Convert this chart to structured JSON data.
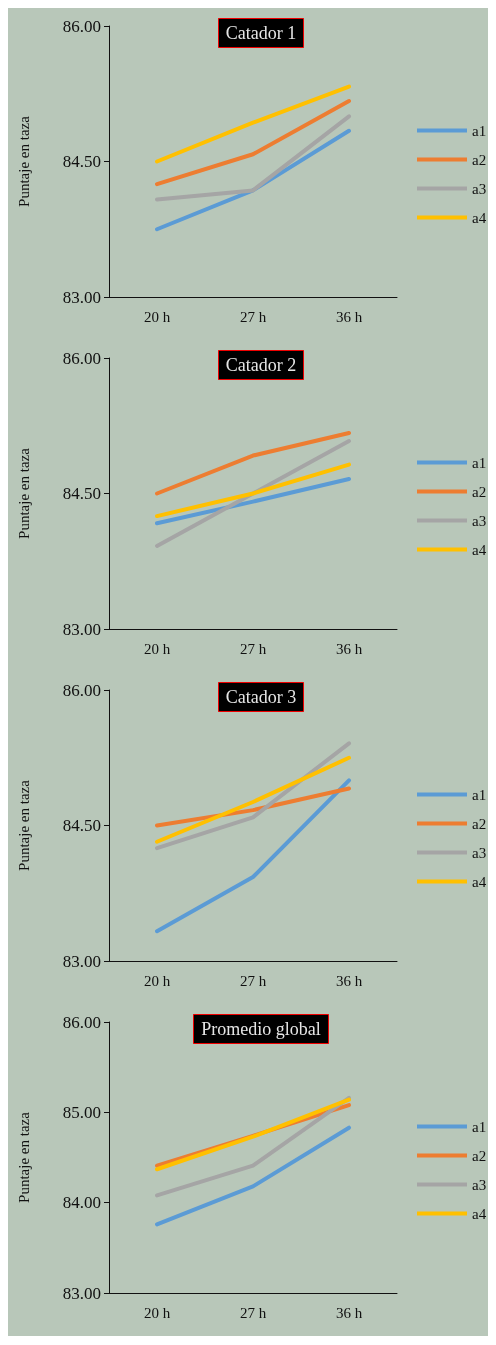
{
  "chart_data": [
    {
      "type": "line",
      "title": "Catador 1",
      "ylabel": "Puntaje en taza",
      "categories": [
        "20 h",
        "27 h",
        "36 h"
      ],
      "ylim": [
        83,
        86
      ],
      "yticks": [
        {
          "value": 83,
          "label": "83.00"
        },
        {
          "value": 84.5,
          "label": "84.50"
        },
        {
          "value": 86,
          "label": "86.00"
        }
      ],
      "grid": false,
      "legend": "right",
      "marker": "none",
      "series": [
        {
          "name": "a1",
          "color": "#5b9bd5",
          "values": [
            83.75,
            84.18,
            84.84
          ]
        },
        {
          "name": "a2",
          "color": "#ed7d31",
          "values": [
            84.25,
            84.58,
            85.17
          ]
        },
        {
          "name": "a3",
          "color": "#a5a5a5",
          "values": [
            84.08,
            84.18,
            85.0
          ]
        },
        {
          "name": "a4",
          "color": "#ffc000",
          "values": [
            84.5,
            84.93,
            85.33
          ]
        }
      ]
    },
    {
      "type": "line",
      "title": "Catador 2",
      "ylabel": "Puntaje en taza",
      "categories": [
        "20 h",
        "27 h",
        "36 h"
      ],
      "ylim": [
        83,
        86
      ],
      "yticks": [
        {
          "value": 83,
          "label": "83.00"
        },
        {
          "value": 84.5,
          "label": "84.50"
        },
        {
          "value": 86,
          "label": "86.00"
        }
      ],
      "grid": false,
      "legend": "right",
      "marker": "none",
      "series": [
        {
          "name": "a1",
          "color": "#5b9bd5",
          "values": [
            84.17,
            84.41,
            84.66
          ]
        },
        {
          "name": "a2",
          "color": "#ed7d31",
          "values": [
            84.5,
            84.92,
            85.17
          ]
        },
        {
          "name": "a3",
          "color": "#a5a5a5",
          "values": [
            83.92,
            84.5,
            85.08
          ]
        },
        {
          "name": "a4",
          "color": "#ffc000",
          "values": [
            84.25,
            84.5,
            84.82
          ]
        }
      ]
    },
    {
      "type": "line",
      "title": "Catador 3",
      "ylabel": "Puntaje en taza",
      "categories": [
        "20 h",
        "27 h",
        "36 h"
      ],
      "ylim": [
        83,
        86
      ],
      "yticks": [
        {
          "value": 83,
          "label": "83.00"
        },
        {
          "value": 84.5,
          "label": "84.50"
        },
        {
          "value": 86,
          "label": "86.00"
        }
      ],
      "grid": false,
      "legend": "right",
      "marker": "none",
      "series": [
        {
          "name": "a1",
          "color": "#5b9bd5",
          "values": [
            83.33,
            83.93,
            85.0
          ]
        },
        {
          "name": "a2",
          "color": "#ed7d31",
          "values": [
            84.5,
            84.67,
            84.91
          ]
        },
        {
          "name": "a3",
          "color": "#a5a5a5",
          "values": [
            84.25,
            84.59,
            85.41
          ]
        },
        {
          "name": "a4",
          "color": "#ffc000",
          "values": [
            84.32,
            84.76,
            85.25
          ]
        }
      ]
    },
    {
      "type": "line",
      "title": "Promedio global",
      "ylabel": "Puntaje en taza",
      "categories": [
        "20 h",
        "27 h",
        "36 h"
      ],
      "ylim": [
        83,
        86
      ],
      "yticks": [
        {
          "value": 83,
          "label": "83.00"
        },
        {
          "value": 84,
          "label": "84.00"
        },
        {
          "value": 85,
          "label": "85.00"
        },
        {
          "value": 86,
          "label": "86.00"
        }
      ],
      "grid": false,
      "legend": "right",
      "marker": "none",
      "series": [
        {
          "name": "a1",
          "color": "#5b9bd5",
          "values": [
            83.76,
            84.18,
            84.83
          ]
        },
        {
          "name": "a2",
          "color": "#ed7d31",
          "values": [
            84.41,
            84.74,
            85.08
          ]
        },
        {
          "name": "a3",
          "color": "#a5a5a5",
          "values": [
            84.08,
            84.41,
            85.16
          ]
        },
        {
          "name": "a4",
          "color": "#ffc000",
          "values": [
            84.37,
            84.73,
            85.14
          ]
        }
      ]
    }
  ]
}
